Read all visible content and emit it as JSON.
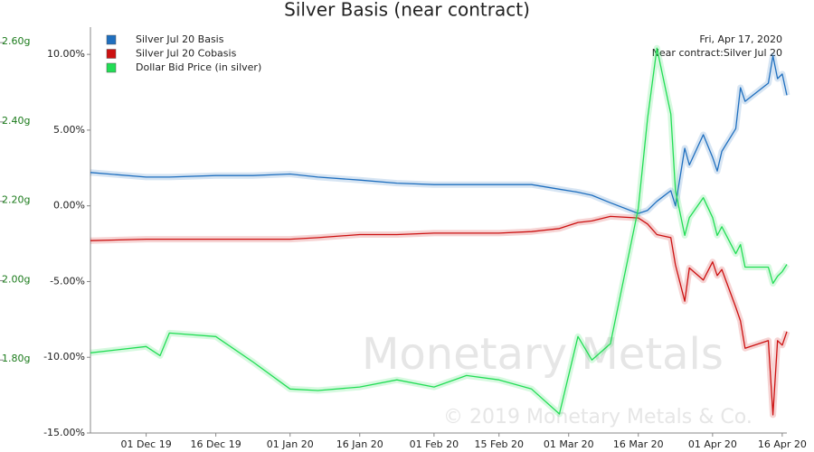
{
  "chart_data": {
    "type": "line",
    "title": "Silver Basis (near contract)",
    "annotations": [
      "Fri, Apr 17, 2020",
      "Near contract:Silver Jul 20"
    ],
    "watermark": [
      "Monetary Metals",
      "© 2019 Monetary Metals & Co."
    ],
    "legend": "top-left",
    "x": [
      "2019-11-19",
      "2019-12-01",
      "2019-12-04",
      "2019-12-06",
      "2019-12-16",
      "2019-12-24",
      "2020-01-01",
      "2020-01-07",
      "2020-01-16",
      "2020-01-24",
      "2020-02-01",
      "2020-02-08",
      "2020-02-15",
      "2020-02-22",
      "2020-02-28",
      "2020-03-03",
      "2020-03-06",
      "2020-03-10",
      "2020-03-16",
      "2020-03-18",
      "2020-03-20",
      "2020-03-23",
      "2020-03-24",
      "2020-03-26",
      "2020-03-27",
      "2020-03-30",
      "2020-04-01",
      "2020-04-02",
      "2020-04-03",
      "2020-04-06",
      "2020-04-07",
      "2020-04-08",
      "2020-04-13",
      "2020-04-14",
      "2020-04-15",
      "2020-04-16",
      "2020-04-17"
    ],
    "xlim": [
      "2019-11-19",
      "2020-04-17"
    ],
    "xticks": [
      {
        "value": "2019-12-01",
        "label": "01 Dec 19"
      },
      {
        "value": "2019-12-16",
        "label": "16 Dec 19"
      },
      {
        "value": "2020-01-01",
        "label": "01 Jan 20"
      },
      {
        "value": "2020-01-16",
        "label": "16 Jan 20"
      },
      {
        "value": "2020-02-01",
        "label": "01 Feb 20"
      },
      {
        "value": "2020-02-15",
        "label": "15 Feb 20"
      },
      {
        "value": "2020-03-01",
        "label": "01 Mar 20"
      },
      {
        "value": "2020-03-16",
        "label": "16 Mar 20"
      },
      {
        "value": "2020-04-01",
        "label": "01 Apr 20"
      },
      {
        "value": "2020-04-16",
        "label": "16 Apr 20"
      }
    ],
    "ylim": [
      -15,
      11.8
    ],
    "yticks": [
      {
        "value": -15,
        "label": "-15.00%"
      },
      {
        "value": -10,
        "label": "-10.00%"
      },
      {
        "value": -5,
        "label": "-5.00%"
      },
      {
        "value": 0,
        "label": "0.00%"
      },
      {
        "value": 5,
        "label": "5.00%"
      },
      {
        "value": 10,
        "label": "10.00%"
      }
    ],
    "y2lim": [
      1.616,
      2.639
    ],
    "y2ticks": [
      {
        "value": 1.8,
        "label": "1.80g"
      },
      {
        "value": 2.0,
        "label": "2.00g"
      },
      {
        "value": 2.2,
        "label": "2.20g"
      },
      {
        "value": 2.4,
        "label": "2.40g"
      },
      {
        "value": 2.6,
        "label": "2.60g"
      }
    ],
    "y2color": "#1a7a1a",
    "series": [
      {
        "name": "Silver Jul 20 Basis",
        "color": "#1f6fbf",
        "values": [
          2.2,
          1.9,
          1.9,
          1.9,
          2.0,
          2.0,
          2.1,
          1.9,
          1.7,
          1.5,
          1.4,
          1.4,
          1.4,
          1.4,
          1.1,
          0.9,
          0.7,
          0.2,
          -0.5,
          -0.3,
          0.3,
          1.0,
          0,
          3.8,
          2.7,
          4.7,
          3.2,
          2.3,
          3.6,
          5.1,
          7.8,
          6.9,
          8.1,
          9.9,
          8.4,
          8.7,
          7.3
        ]
      },
      {
        "name": "Silver Jul 20 Cobasis",
        "color": "#cc1111",
        "values": [
          -2.3,
          -2.2,
          -2.2,
          -2.2,
          -2.2,
          -2.2,
          -2.2,
          -2.1,
          -1.9,
          -1.9,
          -1.8,
          -1.8,
          -1.8,
          -1.7,
          -1.5,
          -1.1,
          -1.0,
          -0.7,
          -0.8,
          -1.2,
          -1.9,
          -2.1,
          -3.9,
          -6.3,
          -4.1,
          -4.9,
          -3.7,
          -4.6,
          -4.2,
          -6.7,
          -7.6,
          -9.4,
          -8.9,
          -13.8,
          -8.9,
          -9.2,
          -8.3
        ]
      },
      {
        "name": "Dollar Bid Price (in silver)",
        "color": "#22dd55",
        "axis": "y2",
        "values": [
          1.818,
          1.834,
          1.811,
          1.868,
          1.859,
          1.795,
          1.727,
          1.723,
          1.732,
          1.75,
          1.732,
          1.761,
          1.75,
          1.727,
          1.664,
          1.859,
          1.8,
          1.841,
          2.182,
          2.409,
          2.586,
          2.42,
          2.227,
          2.114,
          2.159,
          2.209,
          2.159,
          2.114,
          2.136,
          2.068,
          2.091,
          2.034,
          2.034,
          1.993,
          2.011,
          2.023,
          2.041
        ]
      }
    ]
  }
}
